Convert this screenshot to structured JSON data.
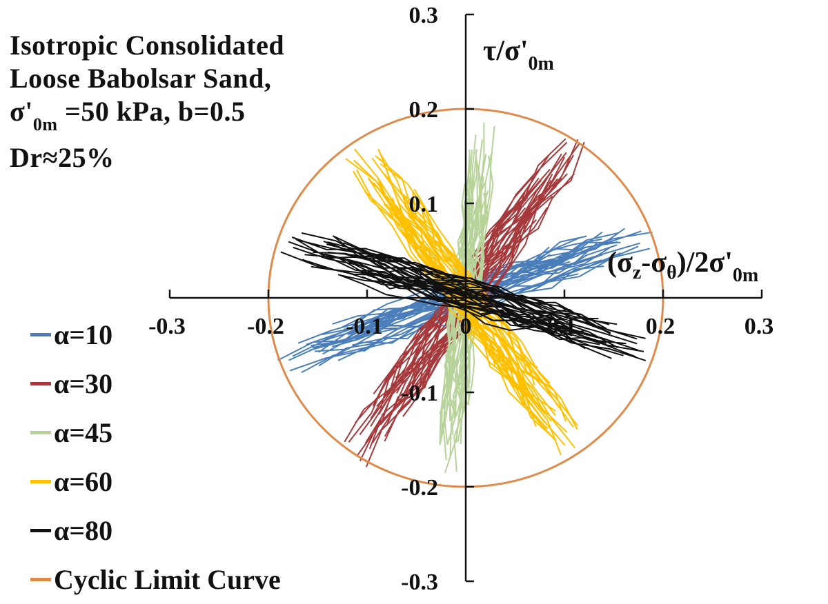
{
  "figure": {
    "title_lines": [
      "Isotropic Consolidated",
      "Loose Babolsar Sand,",
      "σ'0m =50 kPa, b=0.5",
      "Dr≈25%"
    ],
    "legend_title": ""
  },
  "chart_data": {
    "type": "scatter",
    "title": "Isotropic Consolidated Loose Babolsar Sand, σ'0m =50 kPa, b=0.5 Dr≈25%",
    "xlabel": "(σz-σθ)/2σ'0m",
    "ylabel": "τ/σ'0m",
    "xlim": [
      -0.3,
      0.3
    ],
    "ylim": [
      -0.3,
      0.3
    ],
    "x_ticks": [
      "-0.3",
      "-0.2",
      "-0.1",
      "0",
      "0.1",
      "0.2",
      "0.3"
    ],
    "y_ticks": [
      "0.3",
      "0.2",
      "0.1",
      "-0.1",
      "-0.2",
      "-0.3"
    ],
    "grid": false,
    "legend_position": "left",
    "series": [
      {
        "name": "α=10",
        "color": "#4a7ebb",
        "alpha_deg": 10,
        "x_range": [
          -0.19,
          0.19
        ],
        "y_range": [
          -0.07,
          0.07
        ]
      },
      {
        "name": "α=30",
        "color": "#a5393b",
        "alpha_deg": 30,
        "x_range": [
          -0.11,
          0.12
        ],
        "y_range": [
          -0.17,
          0.17
        ]
      },
      {
        "name": "α=45",
        "color": "#b7d39a",
        "alpha_deg": 45,
        "x_range": [
          -0.02,
          0.02
        ],
        "y_range": [
          -0.19,
          0.19
        ]
      },
      {
        "name": "α=60",
        "color": "#ffc000",
        "alpha_deg": 60,
        "x_range": [
          -0.11,
          0.11
        ],
        "y_range": [
          -0.16,
          0.16
        ]
      },
      {
        "name": "α=80",
        "color": "#111111",
        "alpha_deg": 80,
        "x_range": [
          -0.19,
          0.19
        ],
        "y_range": [
          -0.06,
          0.06
        ]
      },
      {
        "name": "Cyclic Limit Curve",
        "color": "#e08a4a",
        "shape": "circle",
        "radius": 0.2
      }
    ]
  }
}
